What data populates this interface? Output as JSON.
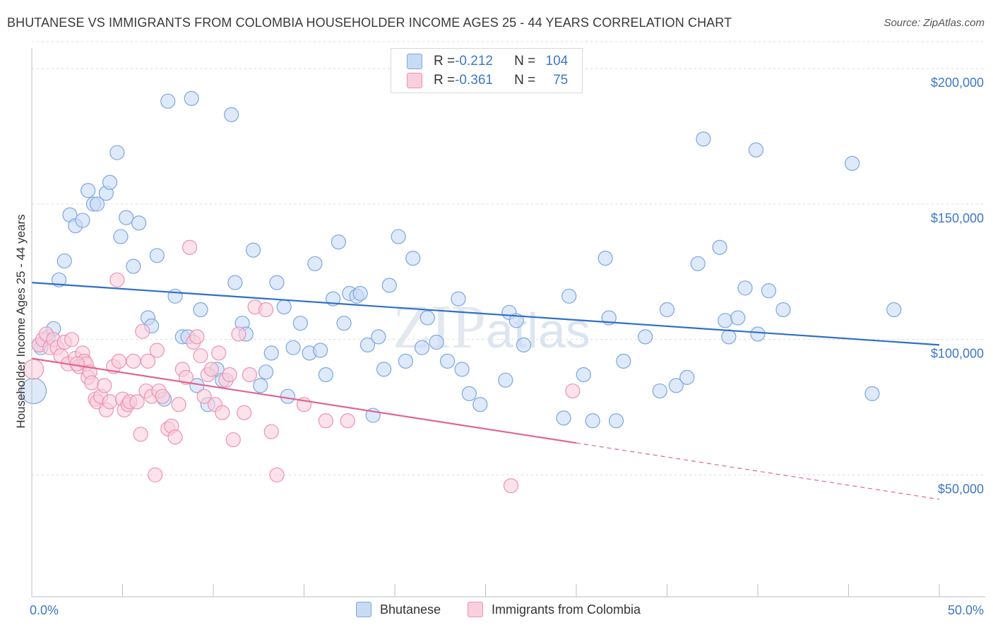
{
  "title": "BHUTANESE VS IMMIGRANTS FROM COLOMBIA HOUSEHOLDER INCOME AGES 25 - 44 YEARS CORRELATION CHART",
  "source": "Source: ZipAtlas.com",
  "watermark": "ZIPatlas",
  "legend_top": {
    "rows": [
      {
        "r_label": "R = ",
        "r_value": "-0.212",
        "n_label": "N = ",
        "n_value": "104",
        "color": "#a9c6ef"
      },
      {
        "r_label": "R = ",
        "r_value": "-0.361",
        "n_label": "N = ",
        "n_value": "75",
        "color": "#f6b8cb"
      }
    ]
  },
  "chart_data": {
    "type": "scatter",
    "title": "BHUTANESE VS IMMIGRANTS FROM COLOMBIA HOUSEHOLDER INCOME AGES 25 - 44 YEARS CORRELATION CHART",
    "xlabel": "",
    "ylabel": "Householder Income Ages 25 - 44 years",
    "xlim": [
      0,
      50
    ],
    "ylim": [
      5000,
      215000
    ],
    "x_tick_labels": [
      "0.0%",
      "50.0%"
    ],
    "y_ticks": [
      50000,
      100000,
      150000,
      200000
    ],
    "y_tick_labels": [
      "$50,000",
      "$100,000",
      "$150,000",
      "$200,000"
    ],
    "grid": "horizontal dashed",
    "legend_position": "bottom",
    "series": [
      {
        "name": "Bhutanese",
        "color": "#7aa7e0",
        "fill": "#c8dbf5",
        "trend": {
          "x0": 0,
          "y0": 121000,
          "x1": 50,
          "y1": 98000,
          "dashed_from": null
        },
        "points": [
          [
            0.1,
            81000,
            18
          ],
          [
            0.5,
            97000,
            10
          ],
          [
            0.9,
            101000,
            10
          ],
          [
            1.2,
            104000,
            10
          ],
          [
            1.5,
            122000,
            10
          ],
          [
            1.8,
            129000,
            10
          ],
          [
            2.1,
            146000,
            10
          ],
          [
            2.4,
            142000,
            10
          ],
          [
            2.8,
            144000,
            10
          ],
          [
            3.1,
            155000,
            10
          ],
          [
            3.4,
            150000,
            10
          ],
          [
            3.6,
            150000,
            10
          ],
          [
            4.1,
            154000,
            10
          ],
          [
            4.3,
            158000,
            10
          ],
          [
            4.7,
            169000,
            10
          ],
          [
            4.9,
            138000,
            10
          ],
          [
            5.2,
            145000,
            10
          ],
          [
            5.6,
            127000,
            10
          ],
          [
            5.9,
            143000,
            10
          ],
          [
            6.4,
            108000,
            10
          ],
          [
            6.6,
            105000,
            10
          ],
          [
            6.9,
            131000,
            10
          ],
          [
            7.3,
            78000,
            10
          ],
          [
            7.5,
            188000,
            10
          ],
          [
            7.9,
            116000,
            10
          ],
          [
            8.3,
            101000,
            10
          ],
          [
            8.6,
            101000,
            10
          ],
          [
            8.8,
            189000,
            10
          ],
          [
            9.1,
            83000,
            10
          ],
          [
            9.3,
            111000,
            10
          ],
          [
            9.7,
            76000,
            10
          ],
          [
            10.2,
            89000,
            10
          ],
          [
            10.5,
            85000,
            10
          ],
          [
            11.0,
            183000,
            10
          ],
          [
            11.2,
            121000,
            10
          ],
          [
            11.6,
            106000,
            10
          ],
          [
            11.8,
            102000,
            10
          ],
          [
            12.2,
            133000,
            10
          ],
          [
            12.6,
            83000,
            10
          ],
          [
            12.9,
            88000,
            10
          ],
          [
            13.2,
            95000,
            10
          ],
          [
            13.5,
            121000,
            10
          ],
          [
            13.9,
            112000,
            10
          ],
          [
            14.1,
            79000,
            10
          ],
          [
            14.4,
            97000,
            10
          ],
          [
            14.8,
            106000,
            10
          ],
          [
            15.3,
            95000,
            10
          ],
          [
            15.6,
            128000,
            10
          ],
          [
            15.9,
            96000,
            10
          ],
          [
            16.2,
            87000,
            10
          ],
          [
            16.6,
            115000,
            10
          ],
          [
            16.9,
            136000,
            10
          ],
          [
            17.2,
            106000,
            10
          ],
          [
            17.5,
            117000,
            10
          ],
          [
            17.9,
            116000,
            10
          ],
          [
            18.1,
            117000,
            10
          ],
          [
            18.5,
            98000,
            10
          ],
          [
            18.8,
            72000,
            10
          ],
          [
            19.1,
            101000,
            10
          ],
          [
            19.4,
            89000,
            10
          ],
          [
            19.7,
            120000,
            10
          ],
          [
            20.2,
            138000,
            10
          ],
          [
            20.6,
            92000,
            10
          ],
          [
            21.0,
            130000,
            10
          ],
          [
            21.5,
            97000,
            10
          ],
          [
            21.8,
            108000,
            10
          ],
          [
            22.3,
            99000,
            10
          ],
          [
            22.9,
            92000,
            10
          ],
          [
            23.5,
            115000,
            10
          ],
          [
            23.7,
            89000,
            10
          ],
          [
            24.1,
            80000,
            10
          ],
          [
            24.7,
            76000,
            10
          ],
          [
            26.1,
            85000,
            10
          ],
          [
            26.3,
            110000,
            10
          ],
          [
            26.7,
            107000,
            10
          ],
          [
            27.1,
            98000,
            10
          ],
          [
            29.3,
            71000,
            10
          ],
          [
            29.6,
            116000,
            10
          ],
          [
            30.4,
            87000,
            10
          ],
          [
            30.9,
            70000,
            10
          ],
          [
            31.6,
            130000,
            10
          ],
          [
            31.8,
            108000,
            10
          ],
          [
            32.2,
            70000,
            10
          ],
          [
            32.6,
            92000,
            10
          ],
          [
            33.8,
            101000,
            10
          ],
          [
            34.6,
            81000,
            10
          ],
          [
            35.0,
            111000,
            10
          ],
          [
            35.5,
            83000,
            10
          ],
          [
            36.1,
            86000,
            10
          ],
          [
            36.7,
            128000,
            10
          ],
          [
            37.0,
            174000,
            10
          ],
          [
            37.9,
            134000,
            10
          ],
          [
            38.2,
            107000,
            10
          ],
          [
            38.4,
            101000,
            10
          ],
          [
            38.9,
            108000,
            10
          ],
          [
            39.3,
            119000,
            10
          ],
          [
            39.9,
            170000,
            10
          ],
          [
            40.0,
            102000,
            10
          ],
          [
            40.6,
            118000,
            10
          ],
          [
            41.4,
            111000,
            10
          ],
          [
            45.2,
            165000,
            10
          ],
          [
            46.3,
            80000,
            10
          ],
          [
            47.5,
            111000,
            10
          ],
          [
            0.4,
            98000,
            10
          ]
        ]
      },
      {
        "name": "Immigrants from Colombia",
        "color": "#ee92b0",
        "fill": "#f9cede",
        "trend": {
          "x0": 0,
          "y0": 93000,
          "x1": 50,
          "y1": 41000,
          "dashed_from": 30
        },
        "points": [
          [
            0.1,
            89000,
            14
          ],
          [
            0.4,
            98000,
            10
          ],
          [
            0.6,
            100000,
            10
          ],
          [
            0.8,
            102000,
            10
          ],
          [
            1.0,
            97000,
            10
          ],
          [
            1.2,
            100000,
            10
          ],
          [
            1.4,
            97000,
            10
          ],
          [
            1.6,
            94000,
            10
          ],
          [
            1.8,
            99000,
            10
          ],
          [
            2.0,
            91000,
            10
          ],
          [
            2.2,
            100000,
            10
          ],
          [
            2.4,
            93000,
            10
          ],
          [
            2.6,
            90000,
            10
          ],
          [
            2.8,
            95000,
            10
          ],
          [
            2.9,
            92000,
            10
          ],
          [
            3.0,
            91000,
            10
          ],
          [
            3.1,
            86000,
            10
          ],
          [
            3.2,
            88000,
            10
          ],
          [
            3.3,
            84000,
            10
          ],
          [
            3.5,
            78000,
            10
          ],
          [
            3.6,
            77000,
            10
          ],
          [
            3.8,
            79000,
            10
          ],
          [
            4.0,
            83000,
            10
          ],
          [
            4.1,
            74000,
            10
          ],
          [
            4.3,
            77000,
            10
          ],
          [
            4.5,
            90000,
            10
          ],
          [
            4.7,
            122000,
            10
          ],
          [
            4.8,
            92000,
            10
          ],
          [
            5.0,
            78000,
            10
          ],
          [
            5.1,
            74000,
            10
          ],
          [
            5.3,
            76000,
            10
          ],
          [
            5.4,
            77000,
            10
          ],
          [
            5.6,
            92000,
            10
          ],
          [
            5.8,
            77000,
            10
          ],
          [
            6.0,
            65000,
            10
          ],
          [
            6.1,
            103000,
            10
          ],
          [
            6.3,
            81000,
            10
          ],
          [
            6.4,
            92000,
            10
          ],
          [
            6.6,
            79000,
            10
          ],
          [
            6.8,
            50000,
            10
          ],
          [
            6.9,
            96000,
            10
          ],
          [
            7.0,
            81000,
            10
          ],
          [
            7.2,
            79000,
            10
          ],
          [
            7.5,
            67000,
            10
          ],
          [
            7.7,
            68000,
            10
          ],
          [
            7.9,
            64000,
            10
          ],
          [
            8.1,
            76000,
            10
          ],
          [
            8.3,
            89000,
            10
          ],
          [
            8.5,
            86000,
            10
          ],
          [
            8.7,
            134000,
            10
          ],
          [
            8.9,
            99000,
            10
          ],
          [
            9.1,
            101000,
            10
          ],
          [
            9.3,
            94000,
            10
          ],
          [
            9.5,
            79000,
            10
          ],
          [
            9.7,
            87000,
            10
          ],
          [
            9.9,
            89000,
            10
          ],
          [
            10.1,
            76000,
            10
          ],
          [
            10.3,
            95000,
            10
          ],
          [
            10.5,
            73000,
            10
          ],
          [
            10.7,
            85000,
            10
          ],
          [
            10.9,
            87000,
            10
          ],
          [
            11.1,
            63000,
            10
          ],
          [
            11.4,
            102000,
            10
          ],
          [
            11.7,
            73000,
            10
          ],
          [
            12.0,
            87000,
            10
          ],
          [
            12.3,
            112000,
            10
          ],
          [
            12.9,
            111000,
            10
          ],
          [
            13.2,
            66000,
            10
          ],
          [
            13.5,
            50000,
            10
          ],
          [
            15.0,
            76000,
            10
          ],
          [
            16.2,
            70000,
            10
          ],
          [
            17.4,
            70000,
            10
          ],
          [
            26.4,
            46000,
            10
          ],
          [
            29.8,
            81000,
            10
          ],
          [
            2.5,
            91000,
            10
          ]
        ]
      }
    ]
  }
}
